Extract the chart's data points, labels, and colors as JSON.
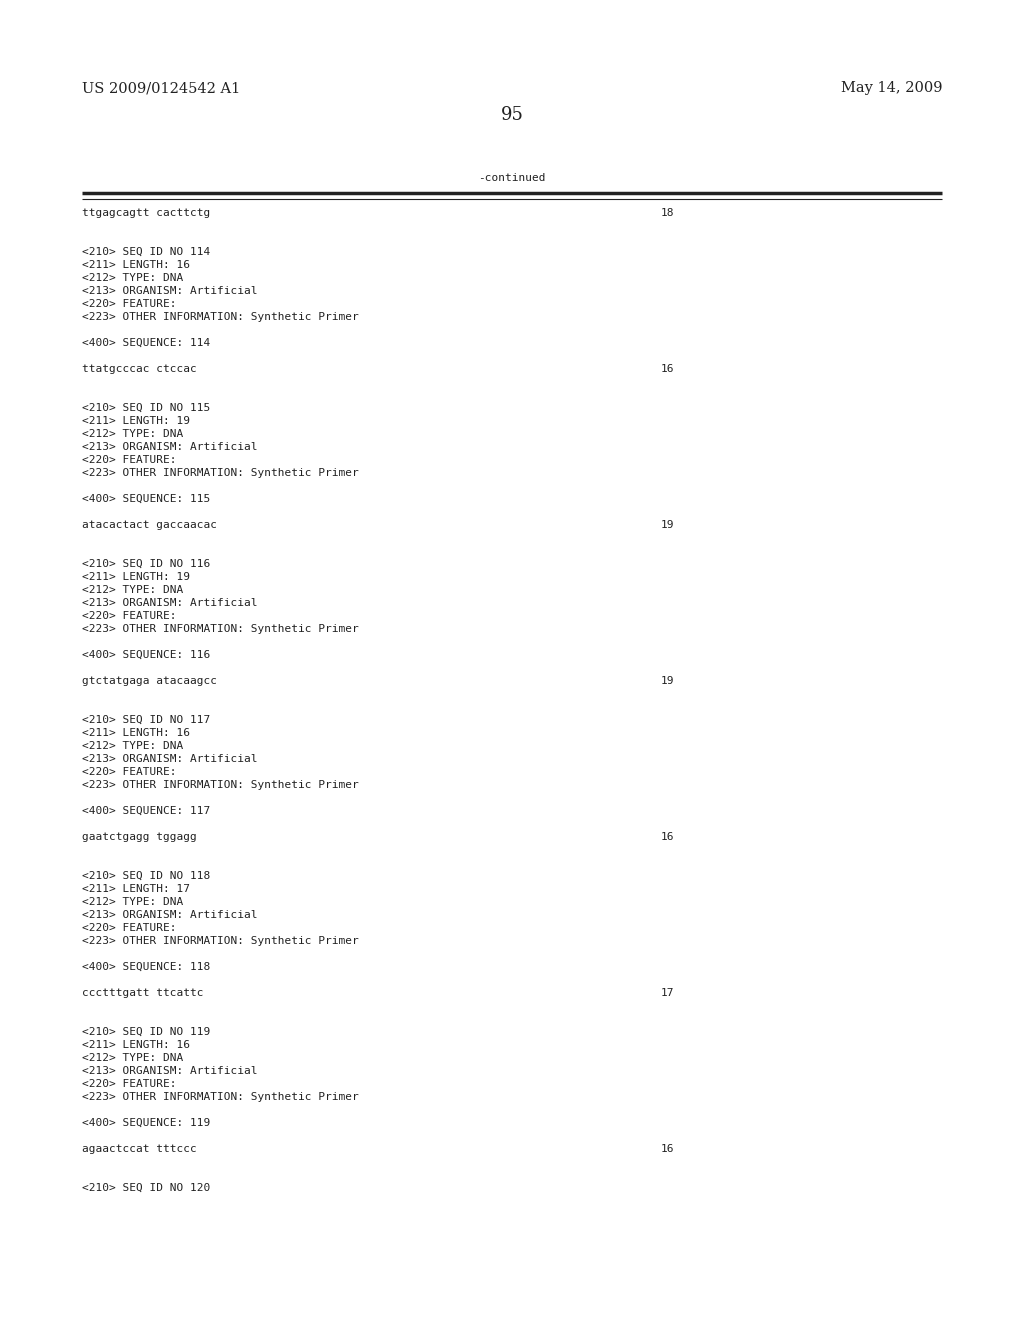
{
  "background_color": "#ffffff",
  "header_left": "US 2009/0124542 A1",
  "header_right": "May 14, 2009",
  "page_number": "95",
  "continued_label": "-continued",
  "body_font_size": 8.0,
  "mono_font": "DejaVu Sans Mono",
  "header_font_size": 10.5,
  "page_num_font_size": 13,
  "content_lines": [
    {
      "text": "ttgagcagtt cacttctg",
      "right_num": "18"
    },
    {
      "text": "",
      "right_num": null
    },
    {
      "text": "",
      "right_num": null
    },
    {
      "text": "<210> SEQ ID NO 114",
      "right_num": null
    },
    {
      "text": "<211> LENGTH: 16",
      "right_num": null
    },
    {
      "text": "<212> TYPE: DNA",
      "right_num": null
    },
    {
      "text": "<213> ORGANISM: Artificial",
      "right_num": null
    },
    {
      "text": "<220> FEATURE:",
      "right_num": null
    },
    {
      "text": "<223> OTHER INFORMATION: Synthetic Primer",
      "right_num": null
    },
    {
      "text": "",
      "right_num": null
    },
    {
      "text": "<400> SEQUENCE: 114",
      "right_num": null
    },
    {
      "text": "",
      "right_num": null
    },
    {
      "text": "ttatgcccac ctccac",
      "right_num": "16"
    },
    {
      "text": "",
      "right_num": null
    },
    {
      "text": "",
      "right_num": null
    },
    {
      "text": "<210> SEQ ID NO 115",
      "right_num": null
    },
    {
      "text": "<211> LENGTH: 19",
      "right_num": null
    },
    {
      "text": "<212> TYPE: DNA",
      "right_num": null
    },
    {
      "text": "<213> ORGANISM: Artificial",
      "right_num": null
    },
    {
      "text": "<220> FEATURE:",
      "right_num": null
    },
    {
      "text": "<223> OTHER INFORMATION: Synthetic Primer",
      "right_num": null
    },
    {
      "text": "",
      "right_num": null
    },
    {
      "text": "<400> SEQUENCE: 115",
      "right_num": null
    },
    {
      "text": "",
      "right_num": null
    },
    {
      "text": "atacactact gaccaacac",
      "right_num": "19"
    },
    {
      "text": "",
      "right_num": null
    },
    {
      "text": "",
      "right_num": null
    },
    {
      "text": "<210> SEQ ID NO 116",
      "right_num": null
    },
    {
      "text": "<211> LENGTH: 19",
      "right_num": null
    },
    {
      "text": "<212> TYPE: DNA",
      "right_num": null
    },
    {
      "text": "<213> ORGANISM: Artificial",
      "right_num": null
    },
    {
      "text": "<220> FEATURE:",
      "right_num": null
    },
    {
      "text": "<223> OTHER INFORMATION: Synthetic Primer",
      "right_num": null
    },
    {
      "text": "",
      "right_num": null
    },
    {
      "text": "<400> SEQUENCE: 116",
      "right_num": null
    },
    {
      "text": "",
      "right_num": null
    },
    {
      "text": "gtctatgaga atacaagcc",
      "right_num": "19"
    },
    {
      "text": "",
      "right_num": null
    },
    {
      "text": "",
      "right_num": null
    },
    {
      "text": "<210> SEQ ID NO 117",
      "right_num": null
    },
    {
      "text": "<211> LENGTH: 16",
      "right_num": null
    },
    {
      "text": "<212> TYPE: DNA",
      "right_num": null
    },
    {
      "text": "<213> ORGANISM: Artificial",
      "right_num": null
    },
    {
      "text": "<220> FEATURE:",
      "right_num": null
    },
    {
      "text": "<223> OTHER INFORMATION: Synthetic Primer",
      "right_num": null
    },
    {
      "text": "",
      "right_num": null
    },
    {
      "text": "<400> SEQUENCE: 117",
      "right_num": null
    },
    {
      "text": "",
      "right_num": null
    },
    {
      "text": "gaatctgagg tggagg",
      "right_num": "16"
    },
    {
      "text": "",
      "right_num": null
    },
    {
      "text": "",
      "right_num": null
    },
    {
      "text": "<210> SEQ ID NO 118",
      "right_num": null
    },
    {
      "text": "<211> LENGTH: 17",
      "right_num": null
    },
    {
      "text": "<212> TYPE: DNA",
      "right_num": null
    },
    {
      "text": "<213> ORGANISM: Artificial",
      "right_num": null
    },
    {
      "text": "<220> FEATURE:",
      "right_num": null
    },
    {
      "text": "<223> OTHER INFORMATION: Synthetic Primer",
      "right_num": null
    },
    {
      "text": "",
      "right_num": null
    },
    {
      "text": "<400> SEQUENCE: 118",
      "right_num": null
    },
    {
      "text": "",
      "right_num": null
    },
    {
      "text": "ccctttgatt ttcattc",
      "right_num": "17"
    },
    {
      "text": "",
      "right_num": null
    },
    {
      "text": "",
      "right_num": null
    },
    {
      "text": "<210> SEQ ID NO 119",
      "right_num": null
    },
    {
      "text": "<211> LENGTH: 16",
      "right_num": null
    },
    {
      "text": "<212> TYPE: DNA",
      "right_num": null
    },
    {
      "text": "<213> ORGANISM: Artificial",
      "right_num": null
    },
    {
      "text": "<220> FEATURE:",
      "right_num": null
    },
    {
      "text": "<223> OTHER INFORMATION: Synthetic Primer",
      "right_num": null
    },
    {
      "text": "",
      "right_num": null
    },
    {
      "text": "<400> SEQUENCE: 119",
      "right_num": null
    },
    {
      "text": "",
      "right_num": null
    },
    {
      "text": "agaactccat tttccc",
      "right_num": "16"
    },
    {
      "text": "",
      "right_num": null
    },
    {
      "text": "",
      "right_num": null
    },
    {
      "text": "<210> SEQ ID NO 120",
      "right_num": null
    }
  ]
}
